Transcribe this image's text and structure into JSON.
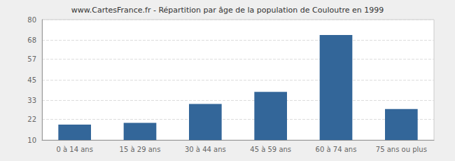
{
  "chart_data": {
    "type": "bar",
    "title": "www.CartesFrance.fr - Répartition par âge de la population de Couloutre en 1999",
    "categories": [
      "0 à 14 ans",
      "15 à 29 ans",
      "30 à 44 ans",
      "45 à 59 ans",
      "60 à 74 ans",
      "75 ans ou plus"
    ],
    "values": [
      19,
      20,
      31,
      38,
      71,
      28
    ],
    "color": "#336699",
    "ylim": [
      10,
      80
    ],
    "yticks": [
      10,
      22,
      33,
      45,
      57,
      68,
      80
    ],
    "grid": true
  }
}
